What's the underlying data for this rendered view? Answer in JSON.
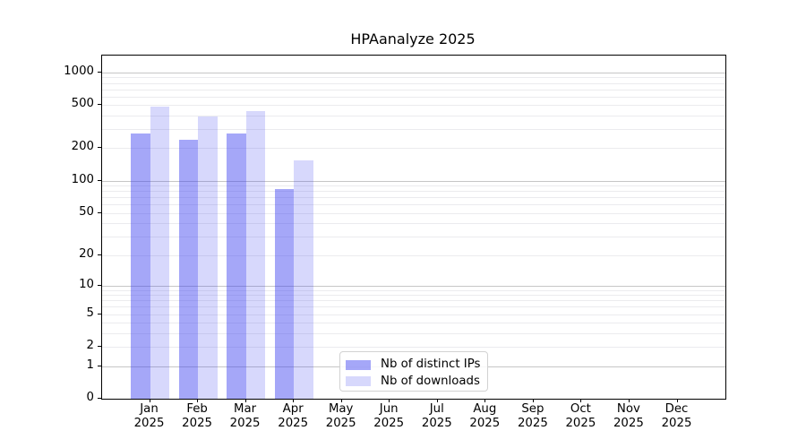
{
  "title": "HPAanalyze 2025",
  "legend": {
    "items": [
      {
        "label": "Nb of distinct IPs",
        "color": "rgba(55,60,240,0.45)"
      },
      {
        "label": "Nb of downloads",
        "color": "rgba(55,60,240,0.20)"
      }
    ]
  },
  "chart_data": {
    "type": "bar",
    "title": "HPAanalyze 2025",
    "categories": [
      "Jan 2025",
      "Feb 2025",
      "Mar 2025",
      "Apr 2025",
      "May 2025",
      "Jun 2025",
      "Jul 2025",
      "Aug 2025",
      "Sep 2025",
      "Oct 2025",
      "Nov 2025",
      "Dec 2025"
    ],
    "series": [
      {
        "name": "Nb of distinct IPs",
        "color": "rgba(55,60,240,0.45)",
        "values": [
          272,
          239,
          272,
          83,
          null,
          null,
          null,
          null,
          null,
          null,
          null,
          null
        ]
      },
      {
        "name": "Nb of downloads",
        "color": "rgba(55,60,240,0.20)",
        "values": [
          480,
          392,
          442,
          153,
          null,
          null,
          null,
          null,
          null,
          null,
          null,
          null
        ]
      }
    ],
    "yscale": "log1p",
    "ylim": [
      0,
      1435
    ],
    "yticks": [
      1000,
      500,
      200,
      100,
      50,
      20,
      10,
      5,
      2,
      1,
      0
    ],
    "major_gridlines": [
      1,
      10,
      100,
      1000
    ],
    "minor_gridlines": [
      2,
      3,
      4,
      5,
      6,
      7,
      8,
      9,
      20,
      30,
      40,
      50,
      60,
      70,
      80,
      90,
      200,
      300,
      400,
      500,
      600,
      700,
      800,
      900
    ],
    "grid": "both",
    "legend_position": "lower center inside"
  },
  "colors": {
    "background": "#ffffff",
    "spine": "#000000",
    "text": "#000000",
    "major_grid": "#c6c6c6",
    "minor_grid": "#ebebee"
  }
}
